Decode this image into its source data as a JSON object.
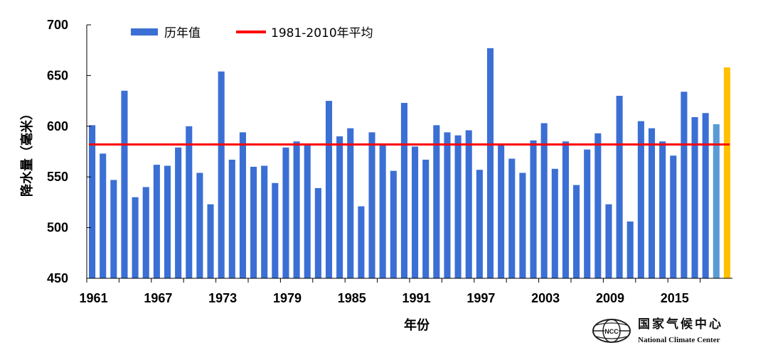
{
  "chart_data": {
    "type": "bar",
    "xlabel": "年份",
    "ylabel": "降水量（毫米）",
    "ylim": [
      450,
      700
    ],
    "yticks": [
      450,
      500,
      550,
      600,
      650,
      700
    ],
    "xtick_labels": [
      "1961",
      "1967",
      "1973",
      "1979",
      "1985",
      "1991",
      "1997",
      "2003",
      "2009",
      "2015"
    ],
    "legend": {
      "position": "top-left",
      "series_label": "历年值",
      "average_label": "1981-2010年平均"
    },
    "colors": {
      "bars": "#3b6fd4",
      "highlight": "#5b9bd5",
      "current": "#ffc000",
      "average": "#ff0000"
    },
    "categories": [
      1961,
      1962,
      1963,
      1964,
      1965,
      1966,
      1967,
      1968,
      1969,
      1970,
      1971,
      1972,
      1973,
      1974,
      1975,
      1976,
      1977,
      1978,
      1979,
      1980,
      1981,
      1982,
      1983,
      1984,
      1985,
      1986,
      1987,
      1988,
      1989,
      1990,
      1991,
      1992,
      1993,
      1994,
      1995,
      1996,
      1997,
      1998,
      1999,
      2000,
      2001,
      2002,
      2003,
      2004,
      2005,
      2006,
      2007,
      2008,
      2009,
      2010,
      2011,
      2012,
      2013,
      2014,
      2015,
      2016,
      2017,
      2018,
      2019,
      2020
    ],
    "values": [
      601,
      573,
      547,
      635,
      530,
      540,
      562,
      561,
      579,
      600,
      554,
      523,
      654,
      567,
      594,
      560,
      561,
      544,
      579,
      585,
      581,
      539,
      625,
      590,
      598,
      521,
      594,
      582,
      556,
      623,
      580,
      567,
      601,
      594,
      591,
      596,
      557,
      677,
      581,
      568,
      554,
      586,
      603,
      558,
      585,
      542,
      577,
      593,
      523,
      630,
      506,
      605,
      598,
      585,
      571,
      634,
      609,
      613,
      602,
      658
    ],
    "average": 582,
    "highlight_index": 58,
    "current_index": 59
  },
  "logo": {
    "emblem_text": "NCC",
    "name_cn": "国家气候中心",
    "name_en": "National Climate Center"
  }
}
